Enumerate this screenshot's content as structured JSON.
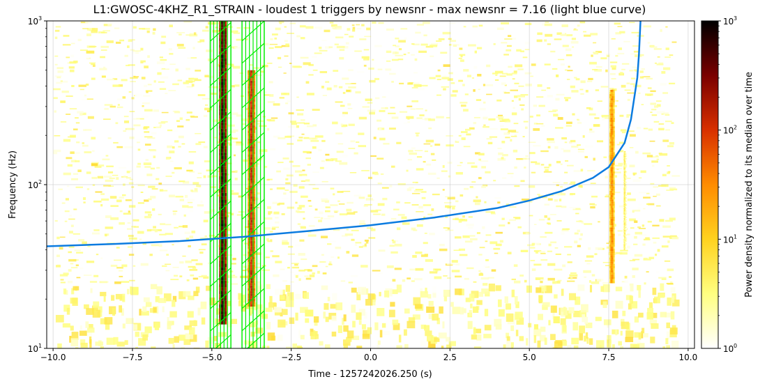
{
  "chart_data": {
    "type": "heatmap",
    "title": "L1:GWOSC-4KHZ_R1_STRAIN - loudest 1 triggers by newsnr - max newsnr = 7.16 (light blue curve)",
    "xlabel": "Time - 1257242026.250 (s)",
    "ylabel": "Frequency (Hz)",
    "xlim": [
      -10.2,
      10.2
    ],
    "ylim": [
      10,
      1000
    ],
    "yscale": "log",
    "grid": true,
    "x_ticks": [
      -10,
      -7.5,
      -5,
      -2.5,
      0,
      2.5,
      5,
      7.5,
      10
    ],
    "x_tick_labels": [
      "−10.0",
      "−7.5",
      "−5.0",
      "−2.5",
      "0.0",
      "2.5",
      "5.0",
      "7.5",
      "10.0"
    ],
    "y_ticks": [
      10,
      100,
      1000
    ],
    "y_tick_labels": [
      "10",
      "10",
      "10"
    ],
    "y_tick_exponents": [
      "1",
      "2",
      "3"
    ],
    "colorbar": {
      "label": "Power density normalized to its median over time",
      "scale": "log",
      "range": [
        1,
        1000
      ],
      "ticks": [
        1,
        10,
        100,
        1000
      ],
      "tick_labels": [
        "10",
        "10",
        "10",
        "10"
      ],
      "tick_exponents": [
        "0",
        "1",
        "2",
        "3"
      ],
      "colormap": [
        "#ffffff",
        "#ffff80",
        "#ffd21f",
        "#ff8c00",
        "#d83000",
        "#7a0000",
        "#000000"
      ]
    },
    "series": [
      {
        "kind": "trigger-track",
        "color": "#0b7be0",
        "x": [
          -10.2,
          -8,
          -6,
          -4,
          -2,
          0,
          2,
          4,
          5,
          6,
          7,
          7.5,
          8,
          8.2,
          8.4,
          8.45,
          8.5
        ],
        "y": [
          42,
          43.5,
          45.2,
          48,
          52,
          56.5,
          63,
          72,
          80,
          91,
          110,
          128,
          180,
          250,
          450,
          620,
          1000
        ]
      }
    ],
    "gate_bands": [
      {
        "x_start": -5.05,
        "x_end": -4.4,
        "color": "#00ee00"
      },
      {
        "x_start": -4.05,
        "x_end": -3.35,
        "color": "#00ee00"
      }
    ],
    "power_features": [
      {
        "name": "glitch-1",
        "x_center": -4.65,
        "half_width": 0.12,
        "f_min": 14,
        "f_max": 1000,
        "level": 900
      },
      {
        "name": "glitch-2",
        "x_center": -3.75,
        "half_width": 0.12,
        "f_min": 18,
        "f_max": 500,
        "level": 150
      },
      {
        "name": "glitch-3",
        "x_center": 7.6,
        "half_width": 0.08,
        "f_min": 25,
        "f_max": 380,
        "level": 35
      },
      {
        "name": "glitch-3b",
        "x_center": 8.0,
        "half_width": 0.05,
        "f_min": 40,
        "f_max": 160,
        "level": 6
      }
    ]
  }
}
